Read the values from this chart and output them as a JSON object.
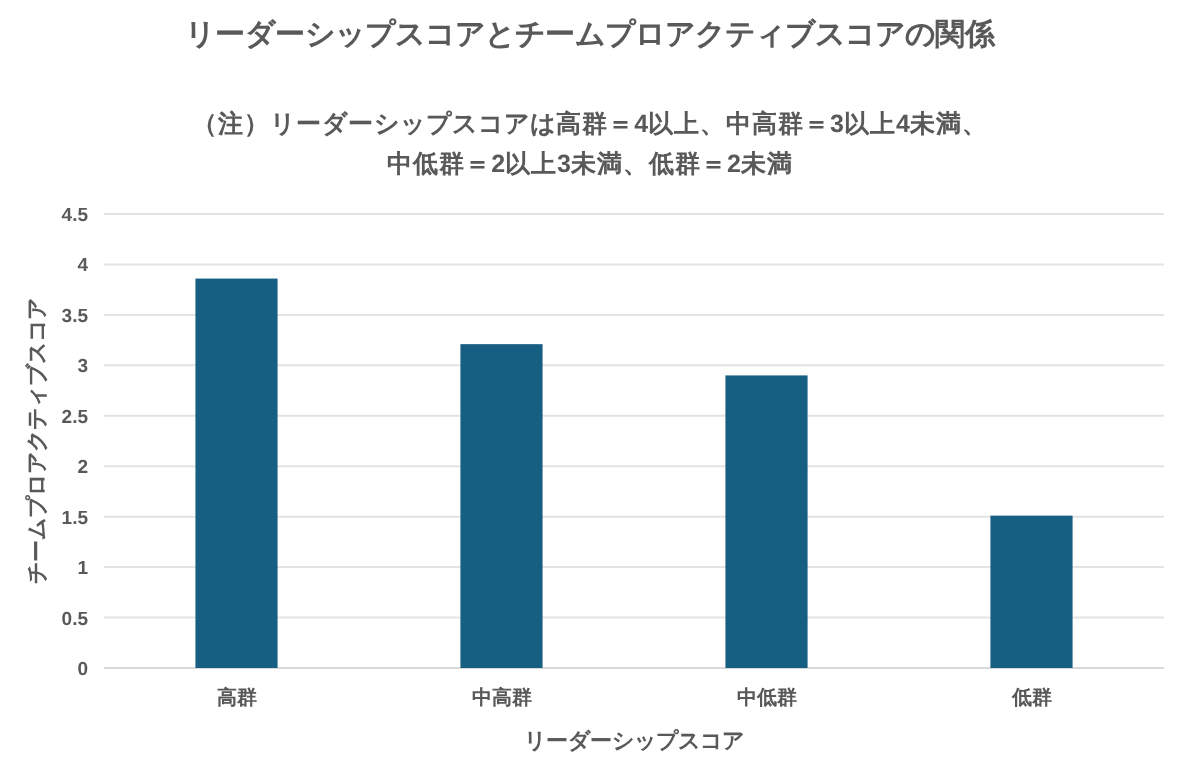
{
  "chart_data": {
    "type": "bar",
    "title": "リーダーシップスコアとチームプロアクティブスコアの関係",
    "annotations": [
      "（注）リーダーシップスコアは高群＝4以上、中高群＝3以上4未満、",
      "中低群＝2以上3未満、低群＝2未満"
    ],
    "categories": [
      "高群",
      "中高群",
      "中低群",
      "低群"
    ],
    "values": [
      3.86,
      3.21,
      2.9,
      1.51
    ],
    "color": "#175f82",
    "xlabel": "リーダーシップスコア",
    "ylabel": "チームプロアクティブスコア",
    "ylim": [
      0,
      4.5
    ],
    "yticks": [
      0,
      0.5,
      1,
      1.5,
      2,
      2.5,
      3,
      3.5,
      4,
      4.5
    ],
    "grid": "y"
  }
}
